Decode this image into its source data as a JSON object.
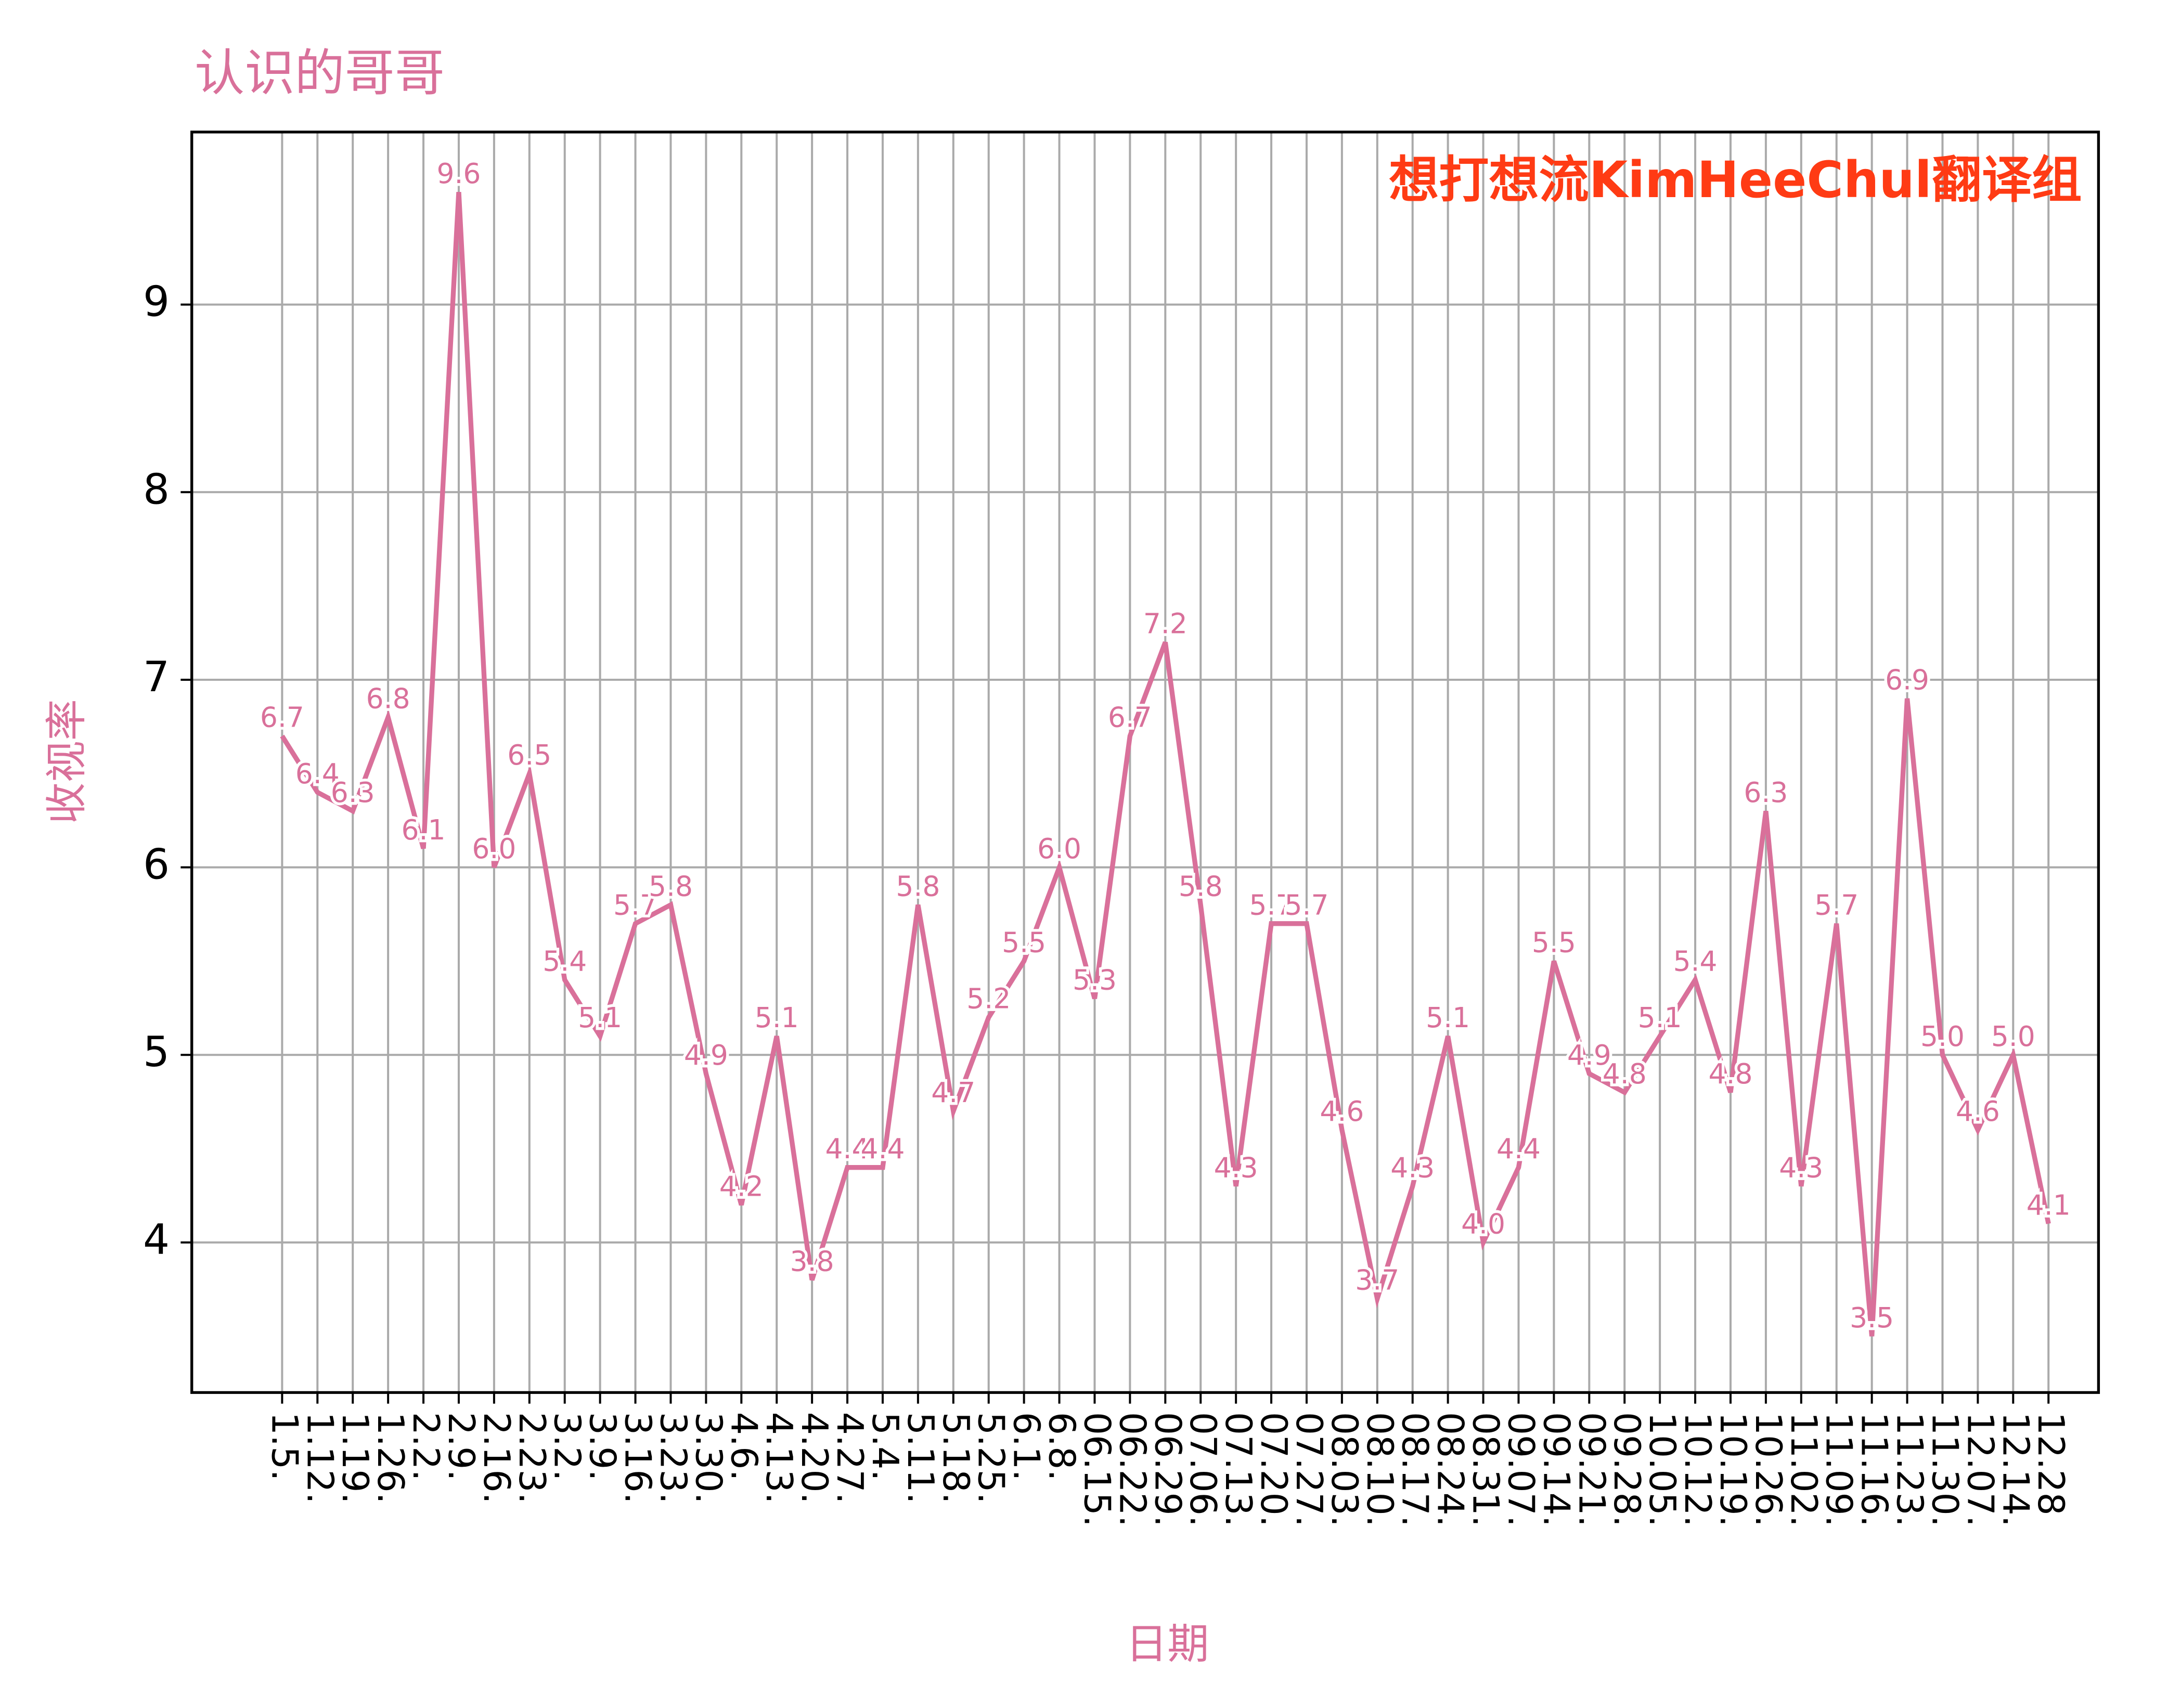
{
  "chart_data": {
    "type": "line",
    "title": "认识的哥哥",
    "annotation": "想打想流KimHeeChul翻译组",
    "x_label": "日期",
    "y_label": "收视率",
    "categories": [
      "1.5.",
      "1.12.",
      "1.19.",
      "1.26.",
      "2.2.",
      "2.9.",
      "2.16.",
      "2.23.",
      "3.2.",
      "3.9.",
      "3.16.",
      "3.23.",
      "3.30.",
      "4.6.",
      "4.13.",
      "4.20.",
      "4.27.",
      "5.4.",
      "5.11.",
      "5.18.",
      "5.25.",
      "6.1.",
      "6.8.",
      "06.15.",
      "06.22.",
      "06.29.",
      "07.06.",
      "07.13.",
      "07.20.",
      "07.27.",
      "08.03.",
      "08.10.",
      "08.17.",
      "08.24.",
      "08.31.",
      "09.07.",
      "09.14.",
      "09.21.",
      "09.28.",
      "10.05.",
      "10.12.",
      "10.19.",
      "10.26.",
      "11.02.",
      "11.09.",
      "11.16.",
      "11.23.",
      "11.30.",
      "12.07.",
      "12.14.",
      "12.28"
    ],
    "series": [
      {
        "name": "收视率",
        "color": "#d9709a",
        "values": [
          6.7,
          6.4,
          6.3,
          6.8,
          6.1,
          9.6,
          6.0,
          6.5,
          5.4,
          5.1,
          5.7,
          5.8,
          4.9,
          4.2,
          5.1,
          3.8,
          4.4,
          4.4,
          5.8,
          4.7,
          5.2,
          5.5,
          6.0,
          5.3,
          6.7,
          7.2,
          5.8,
          4.3,
          5.7,
          5.7,
          4.6,
          3.7,
          4.3,
          5.1,
          4.0,
          4.4,
          5.5,
          4.9,
          4.8,
          5.1,
          5.4,
          4.8,
          6.3,
          4.3,
          5.7,
          3.5,
          6.9,
          5.0,
          4.6,
          5.0,
          4.1
        ],
        "value_labels": [
          "6.7",
          "6.4",
          "6.3",
          "6.8",
          "6.1",
          "9.6",
          "6.0",
          "6.5",
          "5.4",
          "5.1",
          "5.7",
          "5.8",
          "4.9",
          "4.2",
          "5.1",
          "3.8",
          "4.4",
          "4.4",
          "5.8",
          "4.7",
          "5.2",
          "5.5",
          "6.0",
          "5.3",
          "6.7",
          "7.2",
          "5.8",
          "4.3",
          "5.7",
          "5.7",
          "4.6",
          "3.7",
          "4.3",
          "5.1",
          "4.0",
          "4.4",
          "5.5",
          "4.9",
          "4.8",
          "5.1",
          "5.4",
          "4.8",
          "6.3",
          "4.3",
          "5.7",
          "3.5",
          "6.9",
          "5.0",
          "4.6",
          "5.0",
          "4.1"
        ]
      }
    ],
    "ylim": [
      3.2,
      9.92
    ],
    "yticks": [
      4,
      5,
      6,
      7,
      8,
      9
    ],
    "grid": true
  }
}
